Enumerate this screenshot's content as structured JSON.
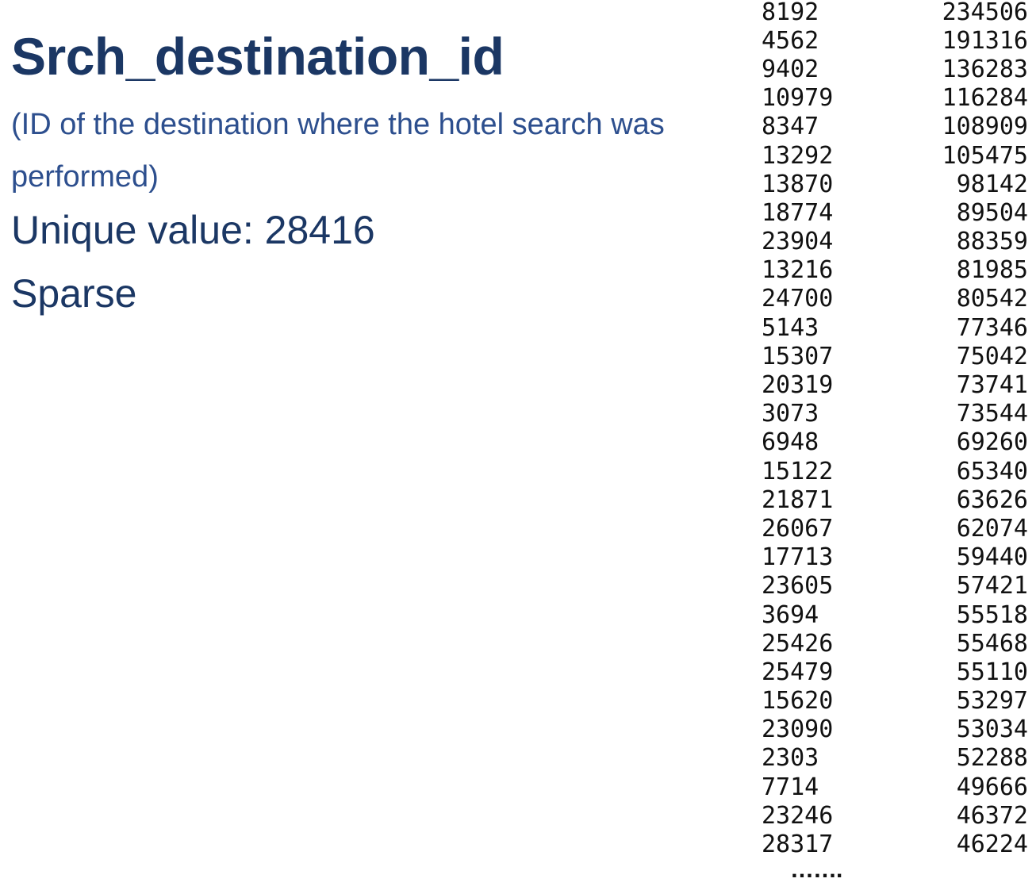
{
  "title": "Srch_destination_id",
  "description": "(ID of the destination where the hotel search was performed)",
  "unique_value": "Unique value: 28416",
  "sparse": "Sparse",
  "value_counts": [
    [
      "8192",
      "234506"
    ],
    [
      "4562",
      "191316"
    ],
    [
      "9402",
      "136283"
    ],
    [
      "10979",
      "116284"
    ],
    [
      "8347",
      "108909"
    ],
    [
      "13292",
      "105475"
    ],
    [
      "13870",
      "98142"
    ],
    [
      "18774",
      "89504"
    ],
    [
      "23904",
      "88359"
    ],
    [
      "13216",
      "81985"
    ],
    [
      "24700",
      "80542"
    ],
    [
      "5143",
      "77346"
    ],
    [
      "15307",
      "75042"
    ],
    [
      "20319",
      "73741"
    ],
    [
      "3073",
      "73544"
    ],
    [
      "6948",
      "69260"
    ],
    [
      "15122",
      "65340"
    ],
    [
      "21871",
      "63626"
    ],
    [
      "26067",
      "62074"
    ],
    [
      "17713",
      "59440"
    ],
    [
      "23605",
      "57421"
    ],
    [
      "3694",
      "55518"
    ],
    [
      "25426",
      "55468"
    ],
    [
      "25479",
      "55110"
    ],
    [
      "15620",
      "53297"
    ],
    [
      "23090",
      "53034"
    ],
    [
      "2303",
      "52288"
    ],
    [
      "7714",
      "49666"
    ],
    [
      "23246",
      "46372"
    ],
    [
      "28317",
      "46224"
    ]
  ],
  "ellipsis": "……."
}
